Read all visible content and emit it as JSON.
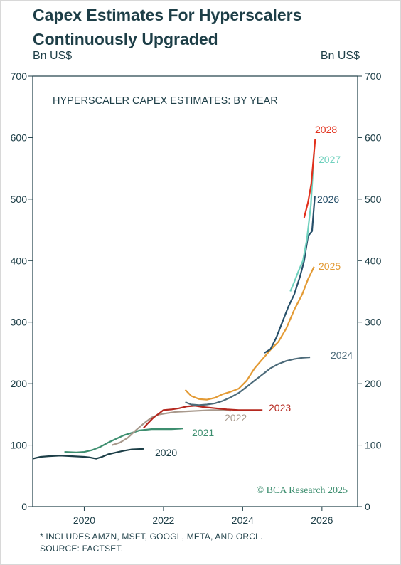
{
  "title_line1": "Capex Estimates For Hyperscalers",
  "title_line2": "Continuously Upgraded",
  "left_unit": "Bn US$",
  "right_unit": "Bn US$",
  "footnote_line1": "* INCLUDES AMZN, MSFT, GOOGL, META, AND ORCL.",
  "footnote_line2": "SOURCE: FACTSET.",
  "watermark": "© BCA Research 2025",
  "chart_data": {
    "type": "line",
    "title": "HYPERSCALER CAPEX ESTIMATES: BY YEAR",
    "xlabel": "",
    "ylabel": "Bn US$",
    "xlim": [
      2018.7,
      2026.9
    ],
    "ylim": [
      0,
      700
    ],
    "x_ticks": [
      2020,
      2022,
      2024,
      2026
    ],
    "y_ticks": [
      0,
      100,
      200,
      300,
      400,
      500,
      600,
      700
    ],
    "grid": false,
    "series": [
      {
        "name": "2020",
        "color": "#1c3e47",
        "points": [
          [
            2018.7,
            78
          ],
          [
            2018.9,
            81
          ],
          [
            2019.1,
            82
          ],
          [
            2019.4,
            83
          ],
          [
            2019.7,
            82
          ],
          [
            2020.0,
            81
          ],
          [
            2020.15,
            80
          ],
          [
            2020.3,
            78
          ],
          [
            2020.45,
            81
          ],
          [
            2020.6,
            85
          ],
          [
            2020.8,
            88
          ],
          [
            2021.0,
            91
          ],
          [
            2021.2,
            93
          ],
          [
            2021.5,
            94
          ]
        ]
      },
      {
        "name": "2021",
        "color": "#3d8e6f",
        "points": [
          [
            2019.5,
            89
          ],
          [
            2019.8,
            88
          ],
          [
            2020.0,
            89
          ],
          [
            2020.2,
            92
          ],
          [
            2020.4,
            97
          ],
          [
            2020.6,
            104
          ],
          [
            2020.8,
            110
          ],
          [
            2021.0,
            116
          ],
          [
            2021.2,
            120
          ],
          [
            2021.4,
            124
          ],
          [
            2021.7,
            126
          ],
          [
            2022.0,
            126
          ],
          [
            2022.2,
            126
          ],
          [
            2022.5,
            127
          ]
        ]
      },
      {
        "name": "2022",
        "color": "#a8998c",
        "points": [
          [
            2020.7,
            100
          ],
          [
            2020.9,
            104
          ],
          [
            2021.1,
            112
          ],
          [
            2021.3,
            124
          ],
          [
            2021.5,
            135
          ],
          [
            2021.7,
            145
          ],
          [
            2021.9,
            150
          ],
          [
            2022.1,
            152
          ],
          [
            2022.3,
            154
          ],
          [
            2022.6,
            155
          ],
          [
            2022.9,
            156
          ],
          [
            2023.2,
            157
          ],
          [
            2023.5,
            157
          ],
          [
            2023.7,
            156
          ]
        ]
      },
      {
        "name": "2023",
        "color": "#b5281f",
        "points": [
          [
            2021.5,
            128
          ],
          [
            2021.6,
            135
          ],
          [
            2021.75,
            145
          ],
          [
            2021.9,
            152
          ],
          [
            2022.0,
            157
          ],
          [
            2022.2,
            158
          ],
          [
            2022.4,
            160
          ],
          [
            2022.6,
            163
          ],
          [
            2022.8,
            164
          ],
          [
            2023.0,
            162
          ],
          [
            2023.3,
            160
          ],
          [
            2023.6,
            158
          ],
          [
            2023.9,
            157
          ],
          [
            2024.2,
            157
          ],
          [
            2024.5,
            157
          ]
        ]
      },
      {
        "name": "2024",
        "color": "#4d6b7a",
        "points": [
          [
            2022.55,
            170
          ],
          [
            2022.7,
            166
          ],
          [
            2022.9,
            165
          ],
          [
            2023.1,
            166
          ],
          [
            2023.3,
            168
          ],
          [
            2023.5,
            172
          ],
          [
            2023.7,
            178
          ],
          [
            2023.9,
            185
          ],
          [
            2024.1,
            195
          ],
          [
            2024.3,
            205
          ],
          [
            2024.5,
            215
          ],
          [
            2024.7,
            225
          ],
          [
            2024.9,
            232
          ],
          [
            2025.1,
            237
          ],
          [
            2025.3,
            240
          ],
          [
            2025.5,
            242
          ],
          [
            2025.7,
            243
          ]
        ]
      },
      {
        "name": "2025",
        "color": "#e39a34",
        "points": [
          [
            2022.55,
            190
          ],
          [
            2022.7,
            180
          ],
          [
            2022.9,
            175
          ],
          [
            2023.1,
            174
          ],
          [
            2023.3,
            177
          ],
          [
            2023.5,
            183
          ],
          [
            2023.7,
            187
          ],
          [
            2023.9,
            192
          ],
          [
            2024.1,
            205
          ],
          [
            2024.3,
            225
          ],
          [
            2024.5,
            240
          ],
          [
            2024.7,
            255
          ],
          [
            2024.9,
            268
          ],
          [
            2025.1,
            290
          ],
          [
            2025.3,
            320
          ],
          [
            2025.5,
            345
          ],
          [
            2025.65,
            370
          ],
          [
            2025.8,
            390
          ]
        ]
      },
      {
        "name": "2026",
        "color": "#27506a",
        "points": [
          [
            2024.55,
            250
          ],
          [
            2024.7,
            256
          ],
          [
            2024.85,
            275
          ],
          [
            2025.0,
            300
          ],
          [
            2025.15,
            325
          ],
          [
            2025.3,
            345
          ],
          [
            2025.45,
            375
          ],
          [
            2025.55,
            400
          ],
          [
            2025.65,
            440
          ],
          [
            2025.75,
            448
          ],
          [
            2025.82,
            505
          ]
        ]
      },
      {
        "name": "2027",
        "color": "#6fd1be",
        "points": [
          [
            2025.2,
            350
          ],
          [
            2025.3,
            365
          ],
          [
            2025.42,
            385
          ],
          [
            2025.52,
            400
          ],
          [
            2025.62,
            435
          ],
          [
            2025.72,
            490
          ],
          [
            2025.8,
            575
          ]
        ]
      },
      {
        "name": "2028",
        "color": "#e2301c",
        "points": [
          [
            2025.55,
            470
          ],
          [
            2025.65,
            495
          ],
          [
            2025.73,
            525
          ],
          [
            2025.83,
            598
          ]
        ]
      }
    ]
  }
}
